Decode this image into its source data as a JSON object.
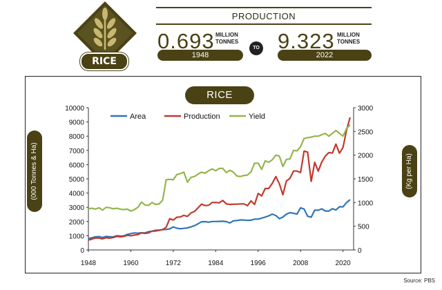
{
  "header": {
    "logo_label": "RICE",
    "production_title": "PRODUCTION",
    "start": {
      "value": "0.693",
      "unit_line1": "MILLION",
      "unit_line2": "TONNES",
      "year": "1948"
    },
    "connector": "TO",
    "end": {
      "value": "9.323",
      "unit_line1": "MILLION",
      "unit_line2": "TONNES",
      "year": "2022"
    }
  },
  "source": "Source: PBS",
  "colors": {
    "brand": "#4a4215",
    "area": "#2e75b6",
    "production": "#c0392b",
    "yield": "#92b64c"
  },
  "chart_data": {
    "type": "line",
    "title": "RICE",
    "ylabel": "(000 Tonnes & Ha)",
    "y2label": "(Kg per Ha)",
    "xlim": [
      1948,
      2023
    ],
    "ylim": [
      0,
      10000
    ],
    "y2lim": [
      0,
      3000
    ],
    "x_ticks": [
      1948,
      1960,
      1972,
      1984,
      1996,
      2008,
      2020
    ],
    "y_ticks": [
      0,
      1000,
      2000,
      3000,
      4000,
      5000,
      6000,
      7000,
      8000,
      9000,
      10000
    ],
    "y2_ticks": [
      0,
      500,
      1000,
      1500,
      2000,
      2500,
      3000
    ],
    "legend_position": "top",
    "x": [
      1948,
      1949,
      1950,
      1951,
      1952,
      1953,
      1954,
      1955,
      1956,
      1957,
      1958,
      1959,
      1960,
      1961,
      1962,
      1963,
      1964,
      1965,
      1966,
      1967,
      1968,
      1969,
      1970,
      1971,
      1972,
      1973,
      1974,
      1975,
      1976,
      1977,
      1978,
      1979,
      1980,
      1981,
      1982,
      1983,
      1984,
      1985,
      1986,
      1987,
      1988,
      1989,
      1990,
      1991,
      1992,
      1993,
      1994,
      1995,
      1996,
      1997,
      1998,
      1999,
      2000,
      2001,
      2002,
      2003,
      2004,
      2005,
      2006,
      2007,
      2008,
      2009,
      2010,
      2011,
      2012,
      2013,
      2014,
      2015,
      2016,
      2017,
      2018,
      2019,
      2020,
      2021,
      2022
    ],
    "series": [
      {
        "name": "Area",
        "axis": "left",
        "values": [
          810,
          860,
          920,
          940,
          880,
          950,
          930,
          920,
          1000,
          980,
          990,
          1090,
          1150,
          1200,
          1180,
          1210,
          1200,
          1280,
          1320,
          1390,
          1400,
          1420,
          1440,
          1480,
          1620,
          1530,
          1490,
          1520,
          1550,
          1620,
          1710,
          1840,
          1980,
          1990,
          1950,
          2000,
          2000,
          2010,
          2020,
          1990,
          1900,
          2050,
          2070,
          2110,
          2100,
          2080,
          2090,
          2170,
          2170,
          2240,
          2310,
          2400,
          2520,
          2420,
          2200,
          2310,
          2520,
          2620,
          2580,
          2520,
          2960,
          2880,
          2370,
          2300,
          2800,
          2790,
          2890,
          2740,
          2740,
          2900,
          2810,
          3040,
          3030,
          3330,
          3540
        ]
      },
      {
        "name": "Production",
        "axis": "left",
        "values": [
          693,
          760,
          850,
          830,
          780,
          860,
          830,
          870,
          950,
          920,
          950,
          1030,
          1000,
          1050,
          1080,
          1200,
          1160,
          1200,
          1320,
          1330,
          1380,
          1430,
          1590,
          2200,
          2100,
          2300,
          2320,
          2430,
          2360,
          2600,
          2710,
          2960,
          3220,
          3120,
          3140,
          3340,
          3340,
          3310,
          3480,
          3240,
          3200,
          3220,
          3220,
          3240,
          3240,
          3110,
          3450,
          3200,
          3970,
          3800,
          4320,
          4320,
          4680,
          5160,
          4650,
          3880,
          4850,
          5030,
          5550,
          5550,
          5440,
          6950,
          6880,
          4820,
          6160,
          5540,
          6180,
          6590,
          6850,
          6810,
          7440,
          6800,
          7200,
          8420,
          9323
        ]
      },
      {
        "name": "Yield",
        "axis": "right",
        "values": [
          870,
          880,
          860,
          890,
          840,
          900,
          890,
          870,
          880,
          860,
          850,
          860,
          820,
          850,
          900,
          1010,
          950,
          940,
          1000,
          960,
          970,
          1050,
          1480,
          1490,
          1480,
          1590,
          1610,
          1640,
          1430,
          1530,
          1550,
          1600,
          1640,
          1620,
          1670,
          1710,
          1670,
          1720,
          1720,
          1630,
          1680,
          1640,
          1560,
          1550,
          1570,
          1580,
          1650,
          1830,
          1830,
          1700,
          1880,
          1850,
          1900,
          2000,
          1980,
          1760,
          1910,
          1920,
          2100,
          2090,
          2180,
          2350,
          2370,
          2380,
          2400,
          2400,
          2430,
          2460,
          2400,
          2460,
          2520,
          2460,
          2400,
          2560,
          2640
        ]
      }
    ]
  }
}
